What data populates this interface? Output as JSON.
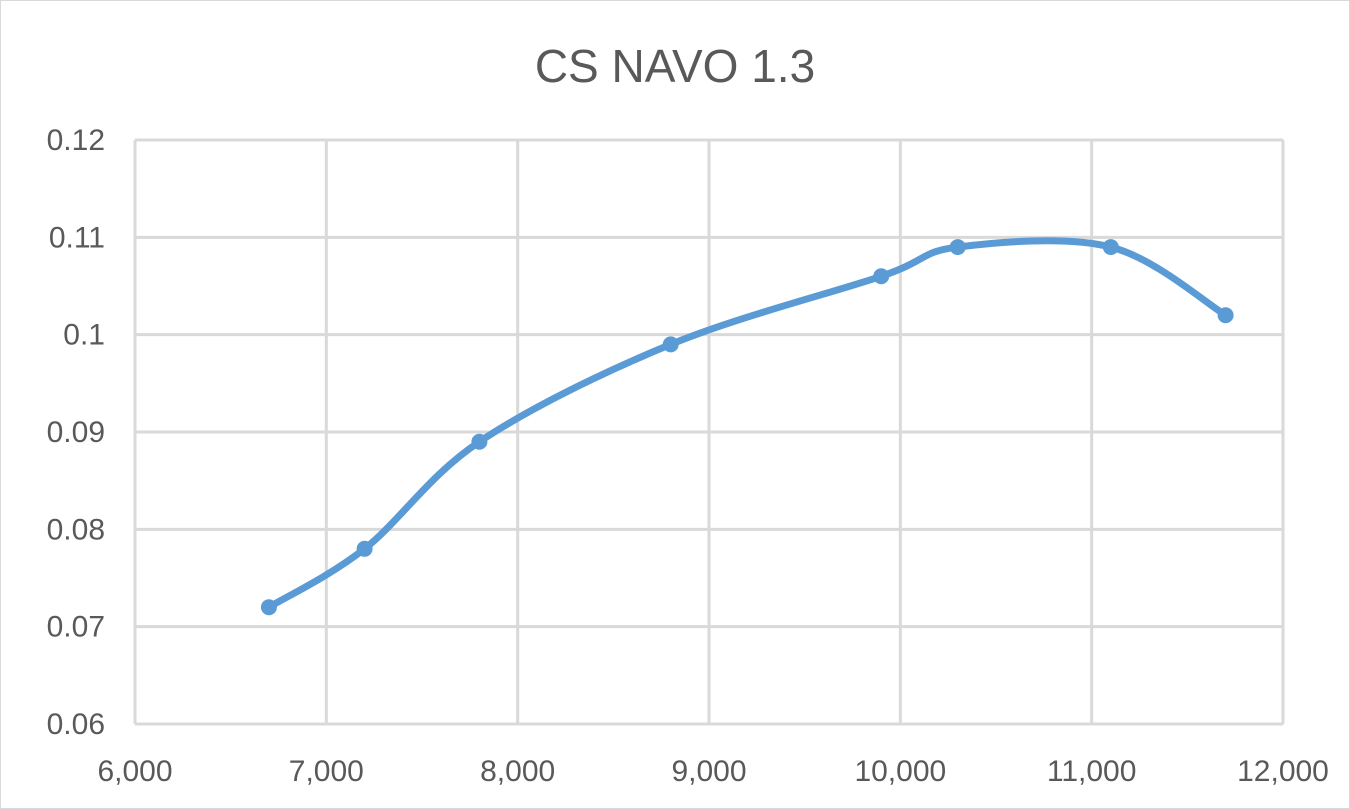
{
  "chart_data": {
    "type": "line",
    "title": "CS NAVO 1.3",
    "xlabel": "",
    "ylabel": "",
    "xlim": [
      6000,
      12000
    ],
    "ylim": [
      0.06,
      0.12
    ],
    "x_ticks": [
      6000,
      7000,
      8000,
      9000,
      10000,
      11000,
      12000
    ],
    "x_tick_labels": [
      "6,000",
      "7,000",
      "8,000",
      "9,000",
      "10,000",
      "11,000",
      "12,000"
    ],
    "y_ticks": [
      0.06,
      0.07,
      0.08,
      0.09,
      0.1,
      0.11,
      0.12
    ],
    "y_tick_labels": [
      "0.06",
      "0.07",
      "0.08",
      "0.09",
      "0.1",
      "0.11",
      "0.12"
    ],
    "grid": true,
    "legend": "none",
    "smooth": true,
    "series": [
      {
        "color": "#5b9bd5",
        "x": [
          6700,
          7200,
          7800,
          8800,
          9900,
          10300,
          11100,
          11700
        ],
        "y": [
          0.072,
          0.078,
          0.089,
          0.099,
          0.106,
          0.109,
          0.109,
          0.102
        ]
      }
    ],
    "gridline_color": "#d9d9d9",
    "text_color": "#595959"
  }
}
